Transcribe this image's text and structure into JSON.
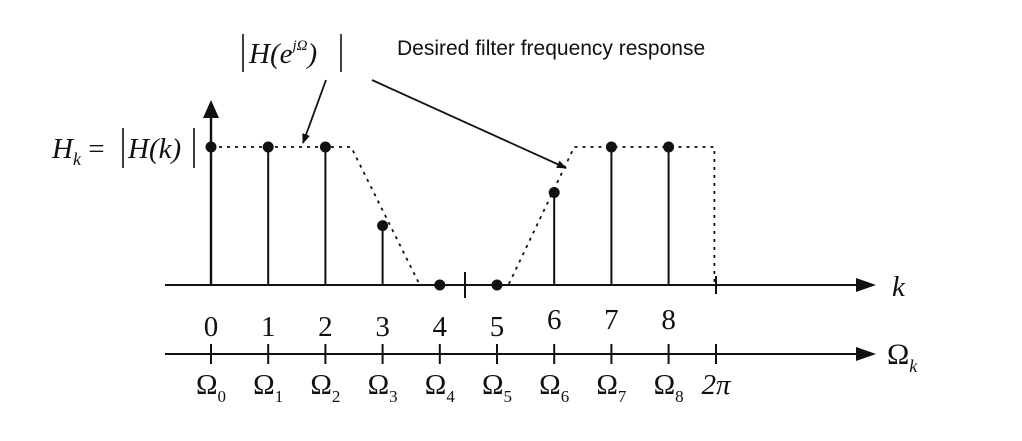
{
  "title_annotation": "Desired filter frequency response",
  "continuous_label": {
    "prefix": "H(e",
    "superscript": "jΩ",
    "suffix": ")"
  },
  "sample_label": {
    "lhs": "H",
    "lhs_sub": "k",
    "eq": " = ",
    "rhs": "H(k)"
  },
  "k_axis": {
    "label": "k",
    "ticks": [
      "0",
      "1",
      "2",
      "3",
      "4",
      "5",
      "6",
      "7",
      "8"
    ]
  },
  "omega_axis": {
    "label": "Ω",
    "label_sub": "k",
    "ticks": [
      {
        "main": "Ω",
        "sub": "0"
      },
      {
        "main": "Ω",
        "sub": "1"
      },
      {
        "main": "Ω",
        "sub": "2"
      },
      {
        "main": "Ω",
        "sub": "3"
      },
      {
        "main": "Ω",
        "sub": "4"
      },
      {
        "main": "Ω",
        "sub": "5"
      },
      {
        "main": "Ω",
        "sub": "6"
      },
      {
        "main": "Ω",
        "sub": "7"
      },
      {
        "main": "Ω",
        "sub": "8"
      },
      {
        "main": "2π",
        "sub": ""
      }
    ]
  },
  "samples": [
    {
      "k": 0,
      "value": 1.0
    },
    {
      "k": 1,
      "value": 1.0
    },
    {
      "k": 2,
      "value": 1.0
    },
    {
      "k": 3,
      "value": 0.43
    },
    {
      "k": 4,
      "value": 0.0
    },
    {
      "k": 5,
      "value": 0.0
    },
    {
      "k": 6,
      "value": 0.67
    },
    {
      "k": 7,
      "value": 1.0
    },
    {
      "k": 8,
      "value": 1.0
    }
  ],
  "desired_response": [
    {
      "k": 0,
      "value": 1.0
    },
    {
      "k": 2.45,
      "value": 1.0
    },
    {
      "k": 3.65,
      "value": 0.0
    },
    {
      "k": 5.2,
      "value": 0.0
    },
    {
      "k": 6.35,
      "value": 1.0
    },
    {
      "k": 8.8,
      "value": 1.0
    },
    {
      "k": 8.8,
      "value": 0.0
    }
  ],
  "colors": {
    "ink": "#111111",
    "background": "#ffffff"
  }
}
